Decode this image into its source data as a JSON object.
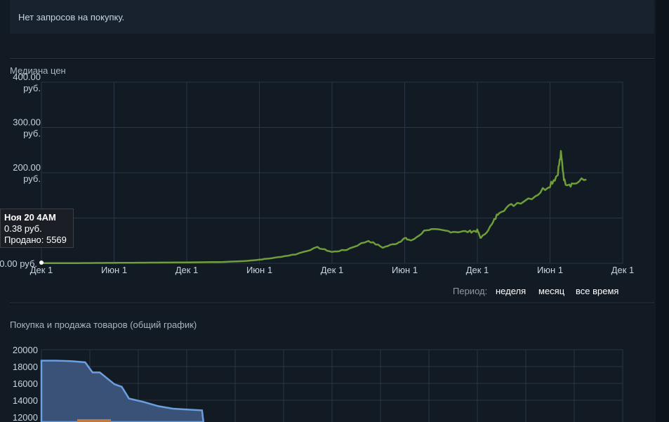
{
  "buy_requests": {
    "text": "Нет запросов на покупку."
  },
  "median_chart": {
    "title": "Медиана цен",
    "y_ticks": [
      {
        "value": 400,
        "lines": [
          "400.00",
          "руб."
        ]
      },
      {
        "value": 300,
        "lines": [
          "300.00",
          "руб."
        ]
      },
      {
        "value": 200,
        "lines": [
          "200.00",
          "руб."
        ]
      },
      {
        "value": 0,
        "lines": [
          "0.00 руб."
        ]
      }
    ],
    "x_ticks": [
      "Дек 1",
      "Июн 1",
      "Дек 1",
      "Июн 1",
      "Дек 1",
      "Июн 1",
      "Дек 1",
      "Июн 1",
      "Дек 1"
    ],
    "tooltip": {
      "date": "Ноя 20 4AM",
      "price": "0.38 руб.",
      "sold": "Продано: 5569"
    },
    "period": {
      "label": "Период:",
      "week": "неделя",
      "month": "месяц",
      "all": "все время"
    },
    "line_color": "#6f9e38"
  },
  "volume_chart": {
    "title": "Покупка и продажа товаров (общий график)",
    "y_ticks": [
      "20000",
      "18000",
      "16000",
      "14000",
      "12000"
    ],
    "fill_color": "#3a5277",
    "line_color": "#6a9fe0"
  },
  "chart_data": [
    {
      "type": "line",
      "title": "Медиана цен",
      "xlabel": "",
      "ylabel": "",
      "ylim": [
        0,
        400
      ],
      "x_tick_labels": [
        "Дек 1",
        "Июн 1",
        "Дек 1",
        "Июн 1",
        "Дек 1",
        "Июн 1",
        "Дек 1",
        "Июн 1",
        "Дек 1"
      ],
      "series": [
        {
          "x": [
            0,
            0.5,
            1,
            1.5,
            2,
            2.5,
            2.8,
            3,
            3.2,
            3.5,
            3.8,
            4,
            4.2,
            4.5,
            4.7,
            4.9,
            5,
            5.1,
            5.3,
            5.5,
            5.7,
            5.9,
            6,
            6.05,
            6.2,
            6.3,
            6.5,
            6.8,
            7,
            7.1,
            7.15,
            7.2,
            7.3,
            7.5
          ],
          "y": [
            0.38,
            0.5,
            1,
            1.5,
            2,
            3,
            5,
            8,
            12,
            20,
            35,
            25,
            30,
            50,
            35,
            45,
            55,
            50,
            75,
            72,
            70,
            70,
            72,
            55,
            85,
            115,
            130,
            150,
            175,
            195,
            240,
            180,
            175,
            185
          ]
        }
      ]
    },
    {
      "type": "area",
      "title": "Покупка и продажа товаров (общий график)",
      "ylim": [
        12000,
        20000
      ],
      "series": [
        {
          "x": [
            0,
            0.1,
            0.2,
            0.3,
            0.35,
            0.4,
            0.5,
            0.55,
            0.6,
            0.7,
            0.8,
            0.9,
            1.0,
            1.1
          ],
          "y": [
            18700,
            18700,
            18650,
            18500,
            17300,
            17300,
            15900,
            15600,
            14200,
            13800,
            13300,
            13000,
            12900,
            12800
          ]
        }
      ]
    }
  ]
}
